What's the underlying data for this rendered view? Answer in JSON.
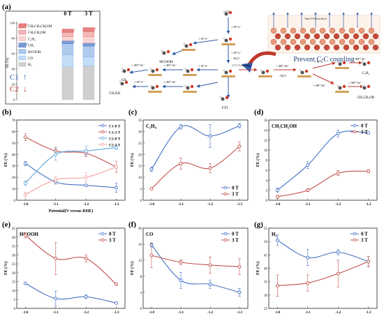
{
  "panel_a": {
    "label": "(a)",
    "bar_chart": {
      "type": "bar",
      "ylabel": "FE (%)",
      "yticks": [
        "0",
        "20",
        "40",
        "60",
        "80",
        "100"
      ],
      "ylim": [
        0,
        100
      ],
      "categories": [
        "0 T",
        "3 T"
      ],
      "series": [
        {
          "name": "CH₃CH₂CH₂OH",
          "color": "#d94040",
          "pattern": "hatch",
          "values": [
            4,
            5
          ]
        },
        {
          "name": "CH₃CH₂OH",
          "color": "#e87a7a",
          "pattern": "dot",
          "values": [
            6,
            7
          ]
        },
        {
          "name": "C₂H₄",
          "color": "#f2b1b1",
          "pattern": "dot",
          "values": [
            5,
            8
          ]
        },
        {
          "name": "CH₄",
          "color": "#3a6bbf",
          "pattern": "hatch",
          "values": [
            4,
            4
          ]
        },
        {
          "name": "HCOOH",
          "color": "#6f9fe0",
          "pattern": "dot",
          "values": [
            14,
            14
          ]
        },
        {
          "name": "CO",
          "color": "#93bff0",
          "pattern": "dot",
          "values": [
            16,
            12
          ]
        },
        {
          "name": "H₂",
          "color": "#c0c0c0",
          "pattern": "line",
          "values": [
            43,
            44
          ]
        }
      ],
      "c1_label": "C1",
      "c2_label": "C2",
      "c1_arrow": "↑",
      "c2_arrow": "↓"
    },
    "scheme": {
      "co2": "CO₂",
      "step_h_e": "+ H⁺/e⁻",
      "minus_h2o": "− H₂O",
      "cc_coupling": "C-C Coupling",
      "four_h": "+ 4H⁺/4e⁻",
      "two_h": "+ 2H⁺/2e⁻",
      "five_h": "+ 5H⁺/5e⁻",
      "three_h": "+ 3H⁺/3e⁻",
      "hcooh": "HCOOH",
      "co": "CO",
      "ch4": "CH₄",
      "ch3oh": "CH₃OH",
      "c2h4": "C₂H₄",
      "ch3ch2oh": "CH₃CH₂OH",
      "spin_polarization": "Spin-Polarization",
      "prevent": "Prevent C-C coupling"
    }
  },
  "chart_data": [
    {
      "panel": "(b)",
      "type": "line",
      "xlabel": "Potential(V versus RHE)",
      "ylabel": "FE (%)",
      "x": [
        -1.0,
        -1.1,
        -1.2,
        -1.3
      ],
      "xticks": [
        "-1.0",
        "-1.1",
        "-1.2",
        "-1.3"
      ],
      "ylim": [
        0,
        70
      ],
      "yticks": [
        0,
        10,
        20,
        30,
        40,
        50,
        60,
        70
      ],
      "legend": "top-right",
      "series": [
        {
          "name": "C1-0 T",
          "color": "#4472c4",
          "values": [
            32,
            16,
            13,
            11
          ],
          "err": [
            2,
            2,
            1,
            4
          ]
        },
        {
          "name": "C1-3 T",
          "color": "#c0504d",
          "values": [
            55,
            43,
            41,
            29
          ],
          "err": [
            3,
            3,
            3,
            5
          ]
        },
        {
          "name": "C2-0 T",
          "color": "#5aa7db",
          "values": [
            15,
            40,
            43,
            46
          ],
          "err": [
            2,
            5,
            4,
            2
          ]
        },
        {
          "name": "C2-3 T",
          "color": "#f2a0a0",
          "values": [
            5,
            18,
            20,
            29
          ],
          "err": [
            2,
            3,
            4,
            5
          ]
        }
      ]
    },
    {
      "panel": "(c)",
      "type": "line",
      "title": "C₂H₄",
      "xlabel": "",
      "ylabel": "FE (%)",
      "x": [
        -1.0,
        -1.1,
        -1.2,
        -1.3
      ],
      "xticks": [
        "-1.0",
        "-1.1",
        "-1.2",
        "-1.3"
      ],
      "ylim": [
        0,
        35
      ],
      "yticks": [
        0,
        5,
        10,
        15,
        20,
        25,
        30,
        35
      ],
      "legend": "bottom-right",
      "series": [
        {
          "name": "0 T",
          "color": "#4472c4",
          "values": [
            13.5,
            32,
            28,
            32.5
          ],
          "err": [
            1,
            1,
            5,
            1
          ]
        },
        {
          "name": "3 T",
          "color": "#c0504d",
          "values": [
            5,
            16,
            14,
            23.5
          ],
          "err": [
            0.5,
            2.5,
            2,
            2
          ]
        }
      ]
    },
    {
      "panel": "(d)",
      "type": "line",
      "title": "CH₃CH₂OH",
      "xlabel": "",
      "ylabel": "FE (%)",
      "x": [
        -1.0,
        -1.1,
        -1.2,
        -1.3
      ],
      "xticks": [
        "-1.0",
        "-1.1",
        "-1.2",
        "-1.3"
      ],
      "ylim": [
        0,
        16
      ],
      "yticks": [
        0,
        2,
        4,
        6,
        8,
        10,
        12,
        14,
        16
      ],
      "legend": "top-right",
      "series": [
        {
          "name": "0 T",
          "color": "#4472c4",
          "values": [
            2,
            7,
            13.3,
            13.4
          ],
          "err": [
            0.4,
            0.7,
            0.7,
            0.2
          ]
        },
        {
          "name": "3 T",
          "color": "#c0504d",
          "values": [
            0.7,
            2,
            5.4,
            5.8
          ],
          "err": [
            0.3,
            0.3,
            0.5,
            0.3
          ]
        }
      ]
    },
    {
      "panel": "(e)",
      "type": "line",
      "title": "HCOOH",
      "xlabel": "",
      "ylabel": "FE (%)",
      "x": [
        -1.0,
        -1.1,
        -1.2,
        -1.3
      ],
      "xticks": [
        "-1.0",
        "-1.1",
        "-1.2",
        "-1.3"
      ],
      "ylim": [
        0,
        45
      ],
      "yticks": [
        0,
        5,
        10,
        15,
        20,
        25,
        30,
        35,
        40,
        45
      ],
      "legend": "top-right",
      "series": [
        {
          "name": "0 T",
          "color": "#4472c4",
          "values": [
            14,
            5.5,
            6.5,
            3
          ],
          "err": [
            0.5,
            4,
            1,
            0.3
          ]
        },
        {
          "name": "3 T",
          "color": "#c0504d",
          "values": [
            41,
            28,
            28,
            13.5
          ],
          "err": [
            1.5,
            9,
            2,
            0.5
          ]
        }
      ]
    },
    {
      "panel": "(f)",
      "type": "line",
      "title": "CO",
      "xlabel": "",
      "ylabel": "FE (%)",
      "x": [
        -1.0,
        -1.1,
        -1.2,
        -1.3
      ],
      "xticks": [
        "-1.0",
        "-1.1",
        "-1.2",
        "-1.3"
      ],
      "ylim": [
        0,
        20
      ],
      "yticks": [
        0,
        4,
        8,
        12,
        16,
        20
      ],
      "legend": "top-right",
      "series": [
        {
          "name": "0 T",
          "color": "#4472c4",
          "values": [
            15.8,
            7,
            6,
            4
          ],
          "err": [
            0.5,
            2,
            1,
            1
          ]
        },
        {
          "name": "3 T",
          "color": "#c0504d",
          "values": [
            13.2,
            11.5,
            10.8,
            10.4
          ],
          "err": [
            3,
            0.6,
            2,
            2
          ]
        }
      ]
    },
    {
      "panel": "(g)",
      "type": "line",
      "title": "H₂",
      "xlabel": "",
      "ylabel": "FE (%)",
      "x": [
        -1.0,
        -1.1,
        -1.2,
        -1.3
      ],
      "xticks": [
        "-1.0",
        "-1.1",
        "-1.2",
        "-1.3"
      ],
      "ylim": [
        25,
        55
      ],
      "yticks": [
        25,
        30,
        35,
        40,
        45,
        50,
        55
      ],
      "legend": "top-right",
      "series": [
        {
          "name": "0 T",
          "color": "#4472c4",
          "values": [
            50.5,
            44,
            46,
            42.5
          ],
          "err": [
            2,
            3,
            1,
            2
          ]
        },
        {
          "name": "3 T",
          "color": "#c0504d",
          "values": [
            33.5,
            34.5,
            38,
            42.5
          ],
          "err": [
            4,
            3,
            5,
            2
          ]
        }
      ]
    }
  ]
}
